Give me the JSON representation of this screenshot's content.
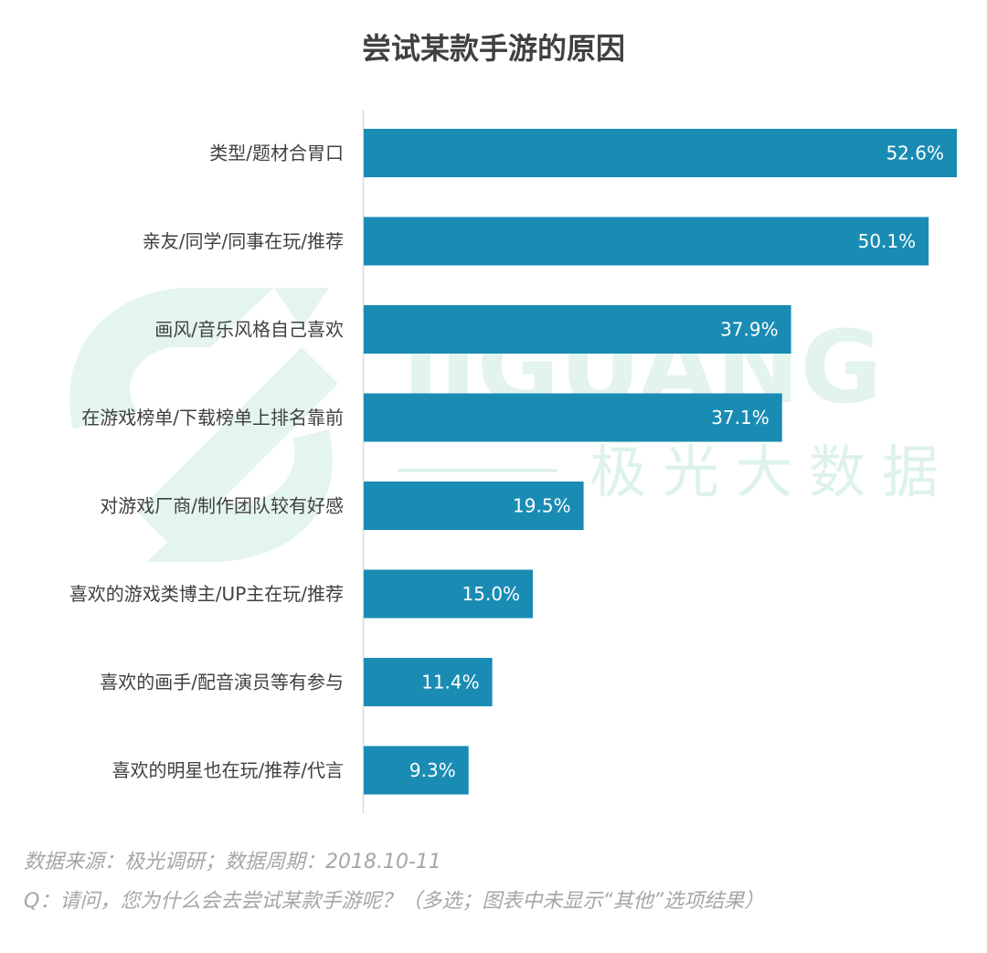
{
  "title": "尝试某款手游的原因",
  "watermark": {
    "brand": "JIGUANG",
    "brand_cn": "极光大数据",
    "color": "#cfeee1"
  },
  "chart_data": {
    "type": "bar",
    "orientation": "horizontal",
    "categories": [
      "类型/题材合胃口",
      "亲友/同学/同事在玩/推荐",
      "画风/音乐风格自己喜欢",
      "在游戏榜单/下载榜单上排名靠前",
      "对游戏厂商/制作团队较有好感",
      "喜欢的游戏类博主/UP主在玩/推荐",
      "喜欢的画手/配音演员等有参与",
      "喜欢的明星也在玩/推荐/代言"
    ],
    "values": [
      52.6,
      50.1,
      37.9,
      37.1,
      19.5,
      15.0,
      11.4,
      9.3
    ],
    "value_labels": [
      "52.6%",
      "50.1%",
      "37.9%",
      "37.1%",
      "19.5%",
      "15.0%",
      "11.4%",
      "9.3%"
    ],
    "xlim": [
      0,
      52.6
    ],
    "bar_color": "#1a8cb4",
    "title": "尝试某款手游的原因",
    "xlabel": "",
    "ylabel": "",
    "grid": false,
    "legend": "none"
  },
  "footer": {
    "source": "数据来源：极光调研；数据周期：2018.10-11",
    "question": "Q：请问，您为什么会去尝试某款手游呢？（多选；图表中未显示“其他”选项结果）"
  }
}
